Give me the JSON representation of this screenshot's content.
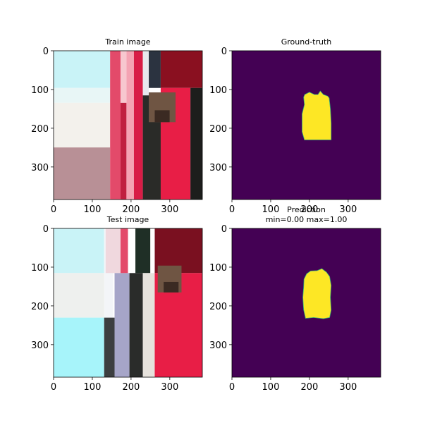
{
  "chart_data": [
    {
      "type": "image",
      "title": "Train image",
      "image_size": [
        384,
        384
      ],
      "xticks": [
        0,
        100,
        200,
        300
      ],
      "yticks": [
        0,
        100,
        200,
        300
      ],
      "content": "photo"
    },
    {
      "type": "heatmap",
      "title": "Ground-truth",
      "image_size": [
        384,
        384
      ],
      "xticks": [
        0,
        100,
        200,
        300
      ],
      "yticks": [
        0,
        100,
        200,
        300
      ],
      "colormap": "viridis",
      "background_color": "#440154",
      "mask_color": "#fde725",
      "mask_value": 1,
      "background_value": 0,
      "mask_polygon": [
        [
          185,
          120
        ],
        [
          188,
          113
        ],
        [
          200,
          107
        ],
        [
          213,
          113
        ],
        [
          222,
          113
        ],
        [
          228,
          104
        ],
        [
          236,
          113
        ],
        [
          247,
          117
        ],
        [
          251,
          122
        ],
        [
          254,
          150
        ],
        [
          256,
          187
        ],
        [
          256,
          230
        ],
        [
          187,
          230
        ],
        [
          181,
          209
        ],
        [
          181,
          163
        ],
        [
          187,
          139
        ]
      ]
    },
    {
      "type": "image",
      "title": "Test image",
      "image_size": [
        384,
        384
      ],
      "xticks": [
        0,
        100,
        200,
        300
      ],
      "yticks": [
        0,
        100,
        200,
        300
      ],
      "content": "photo"
    },
    {
      "type": "heatmap",
      "title": "Prediction\nmin=0.00 max=1.00",
      "title_lines": [
        "Prediction",
        "min=0.00 max=1.00"
      ],
      "min": 0.0,
      "max": 1.0,
      "image_size": [
        384,
        384
      ],
      "xticks": [
        0,
        100,
        200,
        300
      ],
      "yticks": [
        0,
        100,
        200,
        300
      ],
      "colormap": "viridis",
      "background_color": "#440154",
      "mask_color": "#fde725",
      "mask_polygon": [
        [
          193,
          117
        ],
        [
          203,
          110
        ],
        [
          220,
          109
        ],
        [
          232,
          104
        ],
        [
          244,
          113
        ],
        [
          252,
          124
        ],
        [
          256,
          147
        ],
        [
          254,
          178
        ],
        [
          256,
          211
        ],
        [
          252,
          230
        ],
        [
          236,
          233
        ],
        [
          211,
          230
        ],
        [
          190,
          232
        ],
        [
          185,
          210
        ],
        [
          183,
          178
        ],
        [
          185,
          152
        ],
        [
          186,
          131
        ]
      ]
    }
  ]
}
